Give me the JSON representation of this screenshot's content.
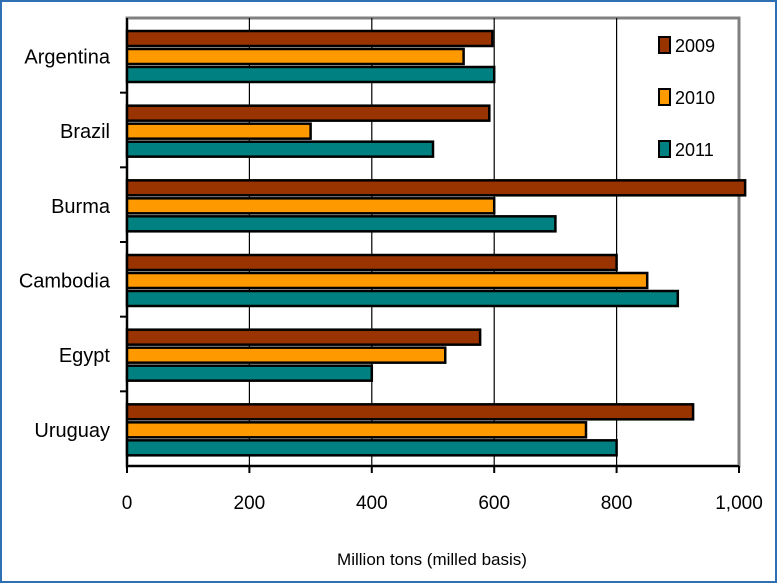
{
  "chart_data": {
    "type": "bar",
    "orientation": "horizontal",
    "categories": [
      "Argentina",
      "Brazil",
      "Burma",
      "Cambodia",
      "Egypt",
      "Uruguay"
    ],
    "series": [
      {
        "name": "2009",
        "color": "#993300",
        "values": [
          597,
          592,
          1010,
          800,
          577,
          925
        ]
      },
      {
        "name": "2010",
        "color": "#ff9900",
        "values": [
          550,
          300,
          600,
          850,
          520,
          750
        ]
      },
      {
        "name": "2011",
        "color": "#008080",
        "values": [
          600,
          500,
          700,
          900,
          400,
          800
        ]
      }
    ],
    "x_ticks": [
      "0",
      "200",
      "400",
      "600",
      "800",
      "1,000"
    ],
    "xlim": [
      0,
      1000
    ],
    "xlabel": "Million tons (milled basis)",
    "ylabel": "",
    "title": "",
    "grid": "vertical major gridlines",
    "legend_position": "top-right inside plot"
  }
}
